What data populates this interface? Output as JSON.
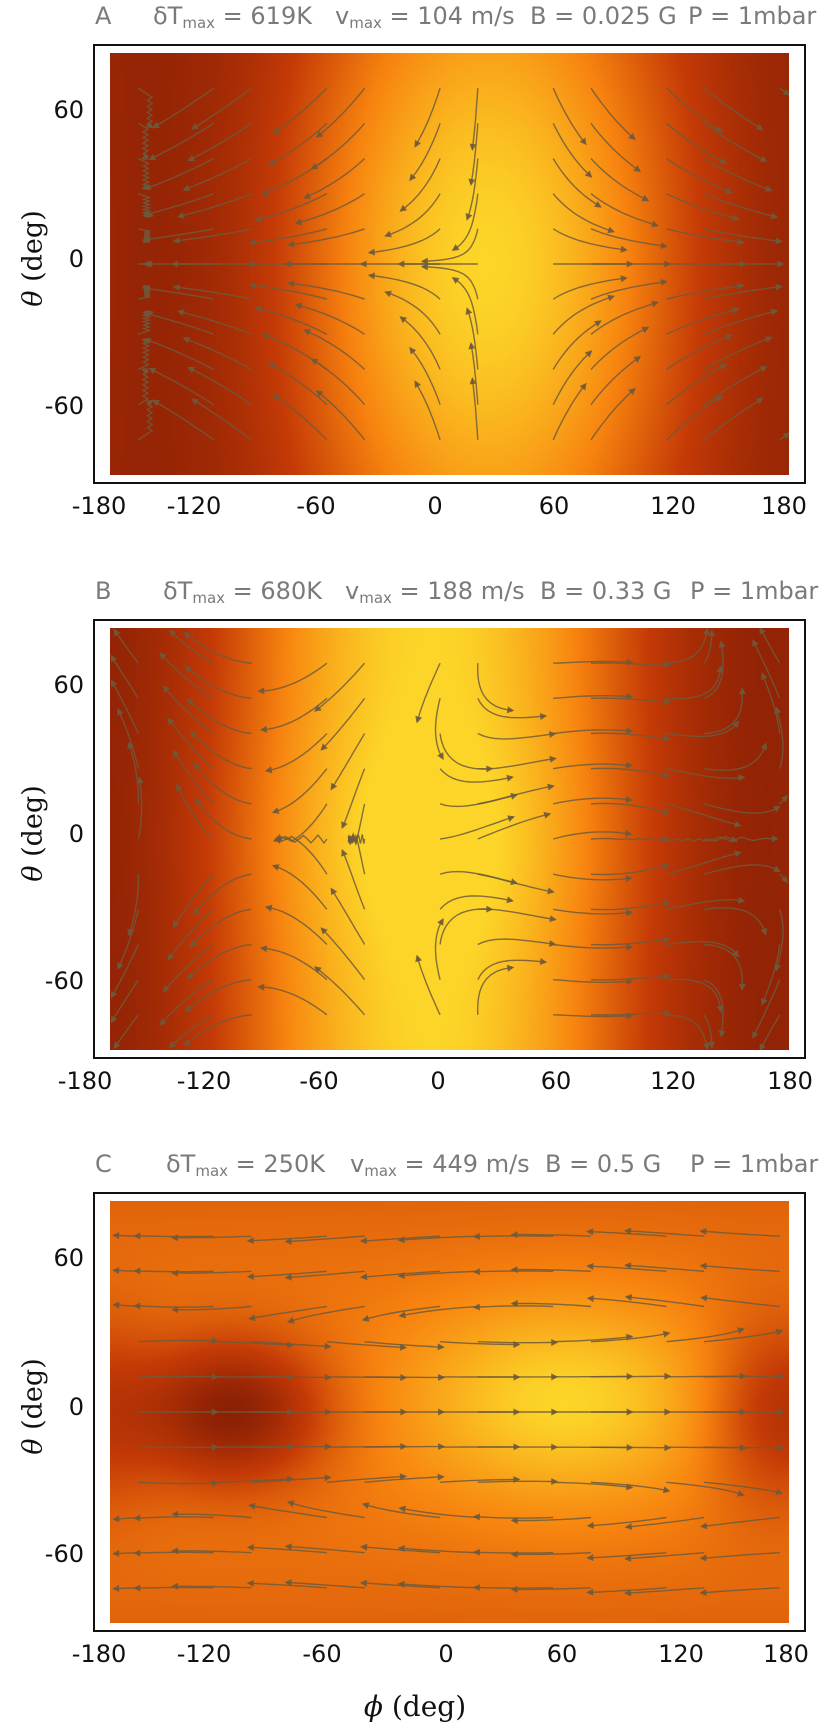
{
  "chart_data": [
    {
      "type": "heatmap",
      "panel": "A",
      "header": {
        "dT_pre": "δT",
        "dT_sub": "max",
        "dT_val": " = 619K",
        "v_pre": "v",
        "v_sub": "max",
        "v_val": " = 104 m/s",
        "B": "B = 0.025 G",
        "P": "P = 1mbar"
      },
      "xlim": [
        -180,
        180
      ],
      "ylim": [
        -90,
        90
      ],
      "xticks": [
        "-180",
        "-120",
        "-60",
        "0",
        "60",
        "120",
        "180"
      ],
      "yticks": [
        "60",
        "0",
        "-60"
      ],
      "ylabel_sym": "θ",
      "ylabel_unit": " (deg)",
      "hotspot_lon": 20,
      "hotspot_lat": 15,
      "map_style": "A",
      "colors": {
        "hot": "#fcd528",
        "mid": "#f7830f",
        "cold": "#7e1a04",
        "arrow": "#6e5a3c"
      }
    },
    {
      "type": "heatmap",
      "panel": "B",
      "header": {
        "dT_pre": "δT",
        "dT_sub": "max",
        "dT_val": " = 680K",
        "v_pre": "v",
        "v_sub": "max",
        "v_val": " = 188 m/s",
        "B": "B = 0.33 G",
        "P": "P = 1mbar"
      },
      "xlim": [
        -180,
        180
      ],
      "ylim": [
        -90,
        90
      ],
      "xticks": [
        "-180",
        "-120",
        "-60",
        "0",
        "60",
        "120",
        "180"
      ],
      "yticks": [
        "60",
        "0",
        "-60"
      ],
      "ylabel_sym": "θ",
      "ylabel_unit": " (deg)",
      "hotspot_lon": -10,
      "hotspot_lat": 0,
      "map_style": "B",
      "colors": {
        "hot": "#fcd528",
        "mid": "#f7830f",
        "cold": "#7e1a04",
        "arrow": "#6e5a3c"
      }
    },
    {
      "type": "heatmap",
      "panel": "C",
      "header": {
        "dT_pre": "δT",
        "dT_sub": "max",
        "dT_val": " = 250K",
        "v_pre": "v",
        "v_sub": "max",
        "v_val": " = 449 m/s",
        "B": "B = 0.5 G",
        "P": "P = 1mbar"
      },
      "xlim": [
        -180,
        180
      ],
      "ylim": [
        -90,
        90
      ],
      "xticks": [
        "-180",
        "-120",
        "-60",
        "0",
        "60",
        "120",
        "180"
      ],
      "yticks": [
        "60",
        "0",
        "-60"
      ],
      "ylabel_sym": "θ",
      "ylabel_unit": " (deg)",
      "hotspot_lon": 60,
      "hotspot_lat": 5,
      "coldspot_lon": -115,
      "map_style": "C",
      "colors": {
        "hot": "#fcd528",
        "mid": "#f7830f",
        "cold": "#7e1a04",
        "arrow": "#6e5a3c"
      }
    }
  ],
  "xlabel_sym": "ϕ",
  "xlabel_unit": " (deg)"
}
